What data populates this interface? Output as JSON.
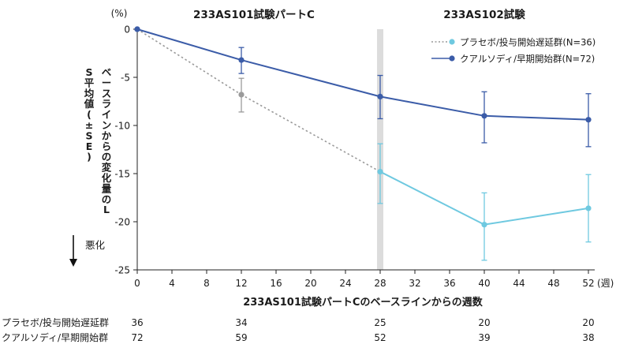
{
  "chart_data": {
    "type": "line",
    "y_unit_label": "(%)",
    "x_unit_label": "(週)",
    "section_labels": [
      "233AS101試験パートC",
      "233AS102試験"
    ],
    "xlabel": "233AS101試験パートCのベースラインからの週数",
    "ylabel": "ベースラインからの変化量のLS平均値(±SE)",
    "worse_label": "悪化",
    "xlim": [
      0,
      52
    ],
    "ylim": [
      -25,
      0
    ],
    "x_ticks": [
      "0",
      "4",
      "8",
      "12",
      "16",
      "20",
      "24",
      "28",
      "32",
      "36",
      "40",
      "44",
      "48",
      "52"
    ],
    "y_ticks": [
      "0",
      "-5",
      "-10",
      "-15",
      "-20",
      "-25"
    ],
    "grid": false,
    "legend_position": "top-right",
    "highlight_x": 28,
    "series": [
      {
        "name": "プラセボ/投与開始遅延群(N=36)",
        "color": "#6fc9e0",
        "early_color": "#9a9a9a",
        "early_dashed_until_x": 28,
        "points": [
          {
            "x": 0,
            "y": 0
          },
          {
            "x": 12,
            "y": -6.8,
            "se_low": -8.6,
            "se_high": -5.1
          },
          {
            "x": 28,
            "y": -14.8,
            "se_low": -18.1,
            "se_high": -11.9
          },
          {
            "x": 40,
            "y": -20.3,
            "se_low": -24.0,
            "se_high": -17.0
          },
          {
            "x": 52,
            "y": -18.6,
            "se_low": -22.1,
            "se_high": -15.1
          }
        ]
      },
      {
        "name": "クアルソディ/早期開始群(N=72)",
        "color": "#3b5ca8",
        "points": [
          {
            "x": 0,
            "y": 0
          },
          {
            "x": 12,
            "y": -3.2,
            "se_low": -4.6,
            "se_high": -1.9
          },
          {
            "x": 28,
            "y": -7.0,
            "se_low": -9.3,
            "se_high": -4.8
          },
          {
            "x": 40,
            "y": -9.0,
            "se_low": -11.8,
            "se_high": -6.5
          },
          {
            "x": 52,
            "y": -9.4,
            "se_low": -12.2,
            "se_high": -6.7
          }
        ]
      }
    ],
    "at_risk": {
      "x": [
        0,
        12,
        28,
        40,
        52
      ],
      "rows": [
        {
          "label": "プラセボ/投与開始遅延群",
          "counts": [
            "36",
            "34",
            "25",
            "20",
            "20"
          ]
        },
        {
          "label": "クアルソディ/早期開始群",
          "counts": [
            "72",
            "59",
            "52",
            "39",
            "38"
          ]
        }
      ]
    }
  }
}
